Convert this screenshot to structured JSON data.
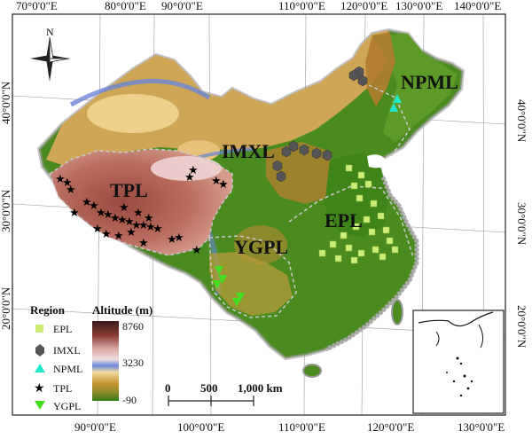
{
  "map": {
    "lon_labels": [
      "70°0'0\"E",
      "80°0'0\"E",
      "90°0'0\"E",
      "110°0'0\"E",
      "120°0'0\"E",
      "130°0'0\"E",
      "140°0'0\"E"
    ],
    "lon_labels_bottom": [
      "90°0'0\"E",
      "100°0'0\"E",
      "110°0'0\"E",
      "120°0'0\"E",
      "130°0'0\"E"
    ],
    "lat_labels_left": [
      "40°0'0\"N",
      "30°0'0\"N",
      "20°0'0\"N"
    ],
    "lat_labels_right": [
      "40°0'0\"N",
      "30°0'0\"N",
      "20°0'0\"N"
    ],
    "north_arrow": "N",
    "region_labels": {
      "npml": "NPML",
      "imxl": "IMXL",
      "tpl": "TPL",
      "epl": "EPL",
      "ygpl": "YGPL"
    }
  },
  "legend": {
    "region_title": "Region",
    "regions": [
      {
        "label": "EPL",
        "icon": "square-icon",
        "color": "#ccee77"
      },
      {
        "label": "IMXL",
        "icon": "hexagon-icon",
        "color": "#555555"
      },
      {
        "label": "NPML",
        "icon": "triangle-icon",
        "color": "#22e8cc"
      },
      {
        "label": "TPL",
        "icon": "star-icon",
        "color": "#000000"
      },
      {
        "label": "YGPL",
        "icon": "down-triangle-icon",
        "color": "#44dd22"
      }
    ],
    "altitude_title": "Altitude (m)",
    "altitude_max": "8760",
    "altitude_mid": "3230",
    "altitude_min": "-90"
  },
  "scalebar": {
    "labels": [
      "0",
      "500",
      "1,000 km"
    ]
  },
  "colors": {
    "low": "#3d8a1a",
    "mid": "#c9a24a",
    "high": "#5a1f1a",
    "water_band": "#6a86d8"
  }
}
